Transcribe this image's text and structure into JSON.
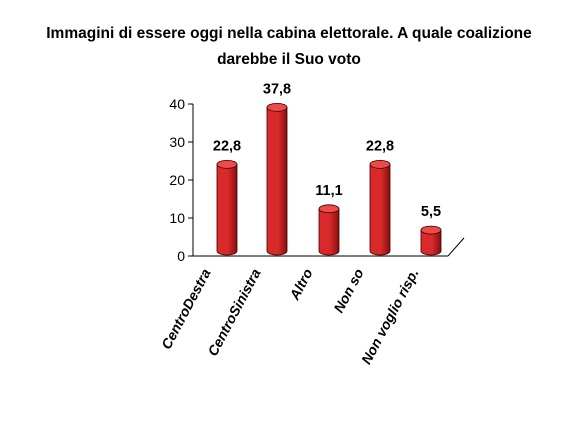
{
  "chart_data": {
    "type": "bar",
    "title_lines": [
      "Immagini di essere oggi nella cabina elettorale. A quale coalizione",
      "darebbe il Suo voto"
    ],
    "categories": [
      "CentroDestra",
      "CentroSinistra",
      "Altro",
      "Non so",
      "Non voglio risp."
    ],
    "values": [
      22.8,
      37.8,
      11.1,
      22.8,
      5.5
    ],
    "value_labels": [
      "22,8",
      "37,8",
      "11,1",
      "22,8",
      "5,5"
    ],
    "yticks": [
      "0",
      "10",
      "20",
      "30",
      "40"
    ],
    "ylim": [
      0,
      40
    ],
    "xlabel": "",
    "ylabel": "",
    "grid": false,
    "legend": "none",
    "bar_color": "#d82a2a",
    "bar_dark": "#8a0e0e",
    "bar_top": "#ee4a4a"
  }
}
